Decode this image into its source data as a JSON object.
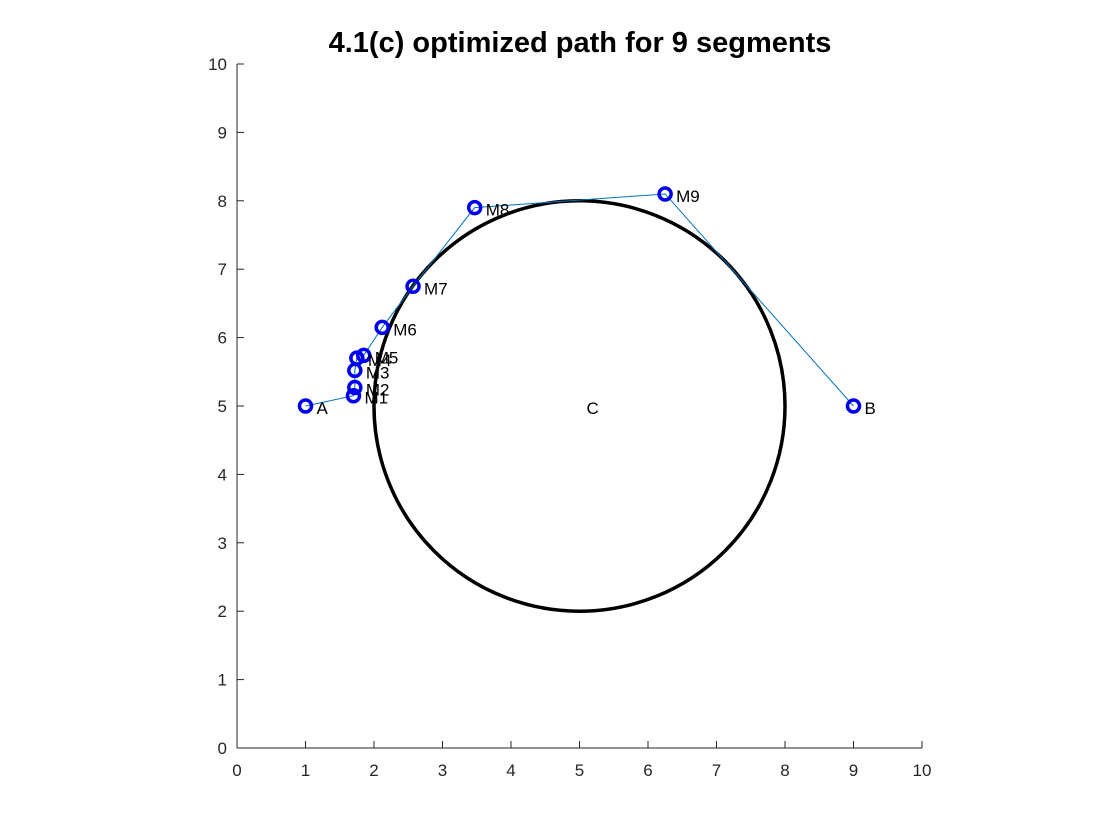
{
  "chart_data": {
    "type": "line",
    "title": "4.1(c) optimized path for 9 segments",
    "xlabel": "",
    "ylabel": "",
    "xlim": [
      0,
      10
    ],
    "ylim": [
      0,
      10
    ],
    "xticks": [
      "0",
      "1",
      "2",
      "3",
      "4",
      "5",
      "6",
      "7",
      "8",
      "9",
      "10"
    ],
    "yticks": [
      "0",
      "1",
      "2",
      "3",
      "4",
      "5",
      "6",
      "7",
      "8",
      "9",
      "10"
    ],
    "grid": false,
    "colors": {
      "path": "#0072bd",
      "marker": "#0000ee",
      "circle": "#000000"
    },
    "obstacle": {
      "center_label": "C",
      "cx": 5,
      "cy": 5,
      "r": 3
    },
    "points": [
      {
        "label": "A",
        "x": 1.0,
        "y": 5.0
      },
      {
        "label": "M1",
        "x": 1.7,
        "y": 5.15
      },
      {
        "label": "M2",
        "x": 1.72,
        "y": 5.27
      },
      {
        "label": "M3",
        "x": 1.72,
        "y": 5.52
      },
      {
        "label": "M4",
        "x": 1.75,
        "y": 5.7
      },
      {
        "label": "M5",
        "x": 1.85,
        "y": 5.74
      },
      {
        "label": "M6",
        "x": 2.12,
        "y": 6.15
      },
      {
        "label": "M7",
        "x": 2.57,
        "y": 6.75
      },
      {
        "label": "M8",
        "x": 3.47,
        "y": 7.9
      },
      {
        "label": "M9",
        "x": 6.25,
        "y": 8.1
      },
      {
        "label": "B",
        "x": 9.0,
        "y": 5.0
      }
    ]
  }
}
